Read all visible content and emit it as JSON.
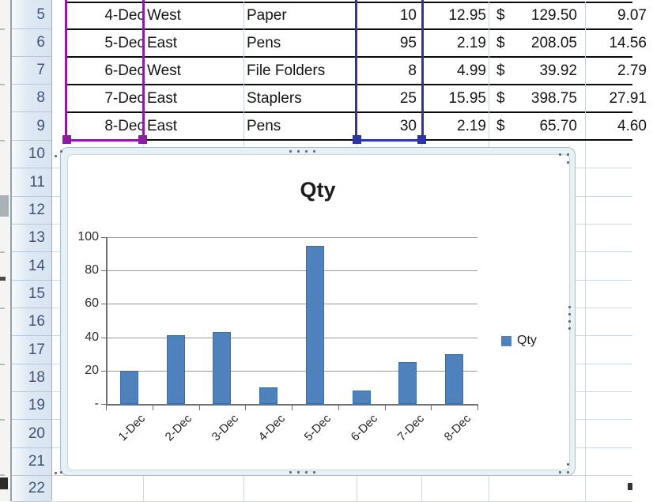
{
  "colors": {
    "bar": "#4f81bd",
    "category_selection": "#8e1ba3",
    "value_selection": "#2d35a6"
  },
  "sheet": {
    "row_numbers": [
      "5",
      "6",
      "7",
      "8",
      "9",
      "10",
      "11",
      "12",
      "13",
      "14",
      "15",
      "16",
      "17",
      "18",
      "19",
      "20",
      "21",
      "22"
    ],
    "rows": [
      {
        "date": "4-Dec",
        "region": "West",
        "item": "Paper",
        "qty": "10",
        "unit_price": "12.95",
        "currency": "$",
        "total": "129.50",
        "tax": "9.07"
      },
      {
        "date": "5-Dec",
        "region": "East",
        "item": "Pens",
        "qty": "95",
        "unit_price": "2.19",
        "currency": "$",
        "total": "208.05",
        "tax": "14.56"
      },
      {
        "date": "6-Dec",
        "region": "West",
        "item": "File Folders",
        "qty": "8",
        "unit_price": "4.99",
        "currency": "$",
        "total": "39.92",
        "tax": "2.79"
      },
      {
        "date": "7-Dec",
        "region": "East",
        "item": "Staplers",
        "qty": "25",
        "unit_price": "15.95",
        "currency": "$",
        "total": "398.75",
        "tax": "27.91"
      },
      {
        "date": "8-Dec",
        "region": "East",
        "item": "Pens",
        "qty": "30",
        "unit_price": "2.19",
        "currency": "$",
        "total": "65.70",
        "tax": "4.60"
      }
    ]
  },
  "chart": {
    "title": "Qty",
    "legend_label": "Qty"
  },
  "chart_data": {
    "type": "bar",
    "title": "Qty",
    "categories": [
      "1-Dec",
      "2-Dec",
      "3-Dec",
      "4-Dec",
      "5-Dec",
      "6-Dec",
      "7-Dec",
      "8-Dec"
    ],
    "values": [
      20,
      41,
      43,
      10,
      95,
      8,
      25,
      30
    ],
    "series_name": "Qty",
    "xlabel": "",
    "ylabel": "",
    "ylim": [
      0,
      100
    ],
    "ytick_labels": [
      "100",
      "80",
      "60",
      "40",
      "20",
      "-"
    ],
    "ytick_values": [
      100,
      80,
      60,
      40,
      20,
      0
    ],
    "grid": true,
    "legend_position": "right",
    "bar_color": "#4f81bd"
  }
}
